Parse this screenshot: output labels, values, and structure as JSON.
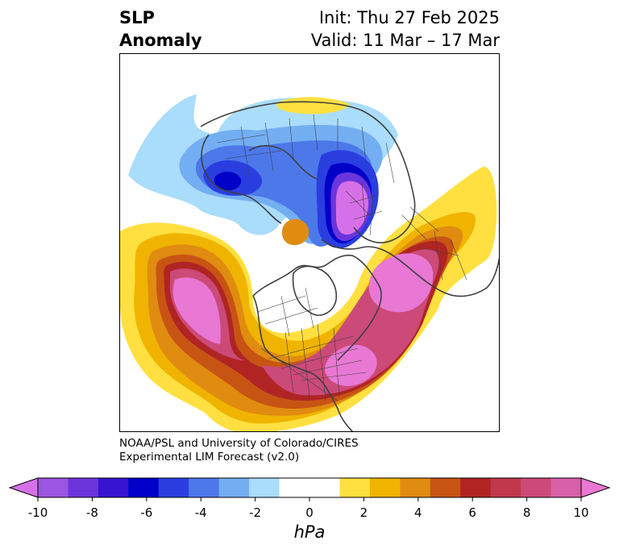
{
  "title": {
    "line1": "SLP",
    "line2": "Anomaly",
    "init": "Init: Thu 27 Feb 2025",
    "valid": "Valid: 11 Mar – 17 Mar"
  },
  "credit": {
    "line1": "NOAA/PSL and University of Colorado/CIRES",
    "line2": "Experimental LIM Forecast (v2.0)"
  },
  "colorbar": {
    "unit": "hPa",
    "tick_labels": [
      "-10",
      "-8",
      "-6",
      "-4",
      "-2",
      "0",
      "2",
      "4",
      "6",
      "8",
      "10"
    ],
    "colors": [
      "#d670e8",
      "#9b55e0",
      "#6b35dc",
      "#3614d0",
      "#0000c8",
      "#2a3ee0",
      "#4c78ea",
      "#74aef2",
      "#aadcfc",
      "#ffffff",
      "#ffffff",
      "#ffe040",
      "#f0b400",
      "#e08c10",
      "#c85414",
      "#b02424",
      "#c0384c",
      "#cc4a78",
      "#d860a8",
      "#e878d4"
    ],
    "extend": "both"
  },
  "map": {
    "projection": "north-polar-stereographic",
    "field": "SLP anomaly (hPa)",
    "features": [
      {
        "name": "northeast-pacific-high",
        "value": 10
      },
      {
        "name": "eastern-us-high",
        "value": 10
      },
      {
        "name": "north-atlantic-europe-high",
        "value": 10
      },
      {
        "name": "western-siberia-low",
        "value": -10
      },
      {
        "name": "east-siberia-low",
        "value": -6
      },
      {
        "name": "arctic-small-high",
        "value": 5
      }
    ]
  }
}
